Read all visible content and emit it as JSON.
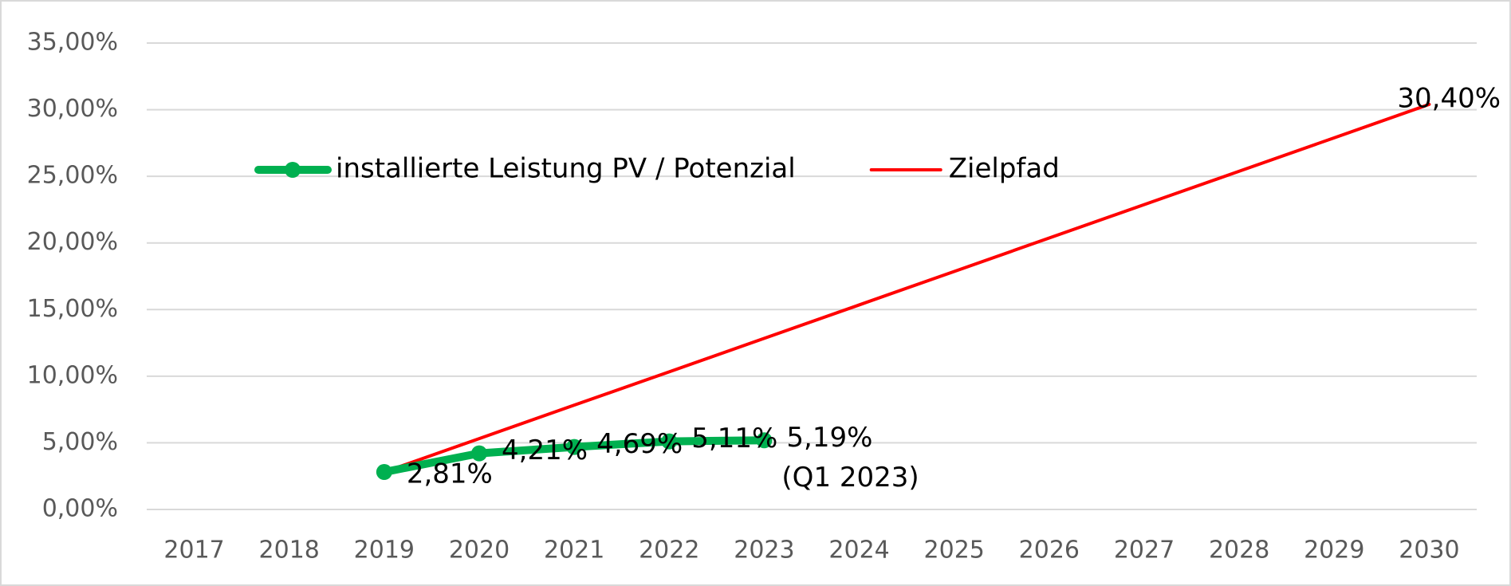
{
  "chart_data": {
    "type": "line",
    "categories": [
      "2017",
      "2018",
      "2019",
      "2020",
      "2021",
      "2022",
      "2023",
      "2024",
      "2025",
      "2026",
      "2027",
      "2028",
      "2029",
      "2030"
    ],
    "series": [
      {
        "name": "installierte Leistung PV / Potenzial",
        "color": "#00b050",
        "values": [
          null,
          null,
          2.81,
          4.21,
          4.69,
          5.11,
          5.19,
          null,
          null,
          null,
          null,
          null,
          null,
          null
        ],
        "value_labels": [
          null,
          null,
          "2,81%",
          "4,21%",
          "4,69%",
          "5,11%",
          "5,19%",
          null,
          null,
          null,
          null,
          null,
          null,
          null
        ],
        "markers": true
      },
      {
        "name": "Zielpfad",
        "color": "#ff0000",
        "values": [
          null,
          null,
          2.81,
          5.32,
          7.83,
          10.33,
          12.84,
          15.35,
          17.86,
          20.37,
          22.88,
          25.38,
          27.89,
          30.4
        ],
        "value_labels": [
          null,
          null,
          null,
          null,
          null,
          null,
          null,
          null,
          null,
          null,
          null,
          null,
          null,
          "30,40%"
        ],
        "markers": false
      }
    ],
    "annotations": [
      "(Q1 2023)"
    ],
    "ylim": [
      0,
      35
    ],
    "yticks": [
      {
        "value": 0,
        "label": "0,00%"
      },
      {
        "value": 5,
        "label": "5,00%"
      },
      {
        "value": 10,
        "label": "10,00%"
      },
      {
        "value": 15,
        "label": "15,00%"
      },
      {
        "value": 20,
        "label": "20,00%"
      },
      {
        "value": 25,
        "label": "25,00%"
      },
      {
        "value": 30,
        "label": "30,00%"
      },
      {
        "value": 35,
        "label": "35,00%"
      }
    ],
    "grid": true,
    "legend": "top-left"
  }
}
